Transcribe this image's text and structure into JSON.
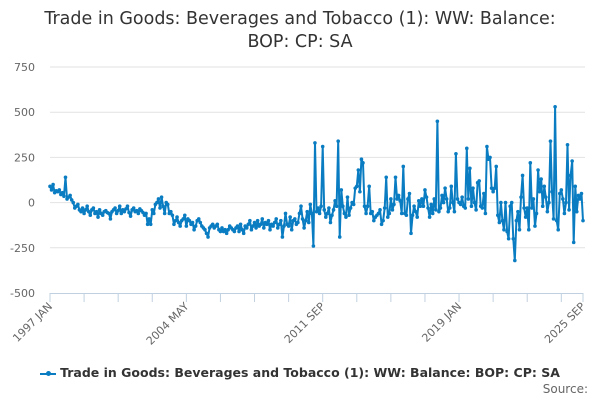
{
  "chart_data": {
    "type": "line",
    "title": "Trade in Goods: Beverages and Tobacco (1): WW: Balance: BOP: CP: SA",
    "title_lines": [
      "Trade in Goods: Beverages and Tobacco (1): WW: Balance:",
      "BOP: CP: SA"
    ],
    "xlabel": "",
    "ylabel": "",
    "ylim": [
      -500,
      750
    ],
    "yticks": [
      "750",
      "500",
      "250",
      "0",
      "-250",
      "-500"
    ],
    "ytick_values": [
      750,
      500,
      250,
      0,
      -250,
      -500
    ],
    "x_start": "1997 JAN",
    "x_end": "2025 SEP",
    "frequency": "monthly",
    "xtick_labels": [
      {
        "index": 0,
        "label": "1997 JAN"
      },
      {
        "index": 88,
        "label": "2004 MAY"
      },
      {
        "index": 176,
        "label": "2011 SEP"
      },
      {
        "index": 264,
        "label": "2019 JAN"
      },
      {
        "index": 344,
        "label": "2025 SEP"
      }
    ],
    "grid": true,
    "legend_position": "bottom",
    "series": [
      {
        "name": "Trade in Goods: Beverages and Tobacco (1): WW: Balance: BOP: CP: SA",
        "color": "#0a7dc2",
        "values": [
          90,
          70,
          100,
          55,
          65,
          60,
          70,
          45,
          55,
          35,
          140,
          20,
          30,
          40,
          15,
          0,
          -30,
          -20,
          -10,
          -40,
          -50,
          -30,
          -60,
          -40,
          -20,
          -50,
          -70,
          -40,
          -30,
          -60,
          -50,
          -80,
          -40,
          -60,
          -70,
          -50,
          -45,
          -55,
          -60,
          -90,
          -50,
          -40,
          -30,
          -60,
          -45,
          -20,
          -60,
          -40,
          -50,
          -35,
          -20,
          -55,
          -75,
          -40,
          -30,
          -50,
          -45,
          -60,
          -35,
          -45,
          -55,
          -70,
          -60,
          -120,
          -90,
          -120,
          -40,
          -60,
          -10,
          0,
          20,
          -30,
          30,
          -20,
          -60,
          0,
          -10,
          -60,
          -50,
          -70,
          -120,
          -100,
          -80,
          -110,
          -130,
          -100,
          -90,
          -70,
          -130,
          -90,
          -100,
          -120,
          -110,
          -150,
          -130,
          -100,
          -90,
          -110,
          -130,
          -140,
          -150,
          -170,
          -190,
          -140,
          -130,
          -120,
          -140,
          -130,
          -120,
          -150,
          -160,
          -140,
          -160,
          -150,
          -170,
          -150,
          -130,
          -140,
          -150,
          -160,
          -140,
          -130,
          -160,
          -120,
          -150,
          -170,
          -130,
          -140,
          -120,
          -100,
          -150,
          -130,
          -110,
          -140,
          -100,
          -130,
          -120,
          -90,
          -140,
          -110,
          -120,
          -100,
          -150,
          -120,
          -130,
          -110,
          -90,
          -140,
          -120,
          -100,
          -190,
          -130,
          -60,
          -120,
          -130,
          -80,
          -150,
          -100,
          -90,
          -120,
          -110,
          -60,
          -20,
          -90,
          -140,
          -100,
          -50,
          -110,
          -10,
          -60,
          -240,
          330,
          -50,
          -30,
          -60,
          -20,
          310,
          -40,
          -80,
          -60,
          -30,
          -110,
          -70,
          -40,
          10,
          -20,
          340,
          -190,
          70,
          -20,
          -60,
          -80,
          30,
          -70,
          -30,
          0,
          -10,
          80,
          90,
          180,
          60,
          240,
          220,
          -20,
          -60,
          -20,
          90,
          -60,
          -50,
          -100,
          -80,
          -70,
          -60,
          -40,
          -120,
          -100,
          -30,
          140,
          -80,
          -60,
          20,
          -40,
          -10,
          140,
          20,
          40,
          10,
          -60,
          200,
          -60,
          -70,
          20,
          50,
          -170,
          -70,
          -20,
          -50,
          -80,
          10,
          -20,
          20,
          -20,
          70,
          30,
          -30,
          -80,
          -10,
          -60,
          20,
          -40,
          450,
          -50,
          -30,
          40,
          0,
          80,
          20,
          -50,
          -30,
          90,
          0,
          -50,
          270,
          20,
          0,
          -10,
          30,
          -20,
          -30,
          300,
          20,
          190,
          -20,
          80,
          0,
          -40,
          110,
          120,
          -20,
          -30,
          50,
          -60,
          310,
          240,
          250,
          80,
          60,
          80,
          200,
          -70,
          -110,
          0,
          -100,
          -150,
          0,
          -160,
          -200,
          -20,
          0,
          -200,
          -320,
          -100,
          -50,
          -150,
          30,
          150,
          -30,
          -80,
          -30,
          -150,
          220,
          -30,
          20,
          -130,
          -60,
          180,
          60,
          130,
          -20,
          90,
          30,
          -50,
          0,
          340,
          60,
          -90,
          530,
          -100,
          -150,
          50,
          70,
          20,
          -60,
          0,
          320,
          -40,
          150,
          230,
          -220,
          90,
          -50,
          40,
          20,
          50,
          -100
        ]
      }
    ],
    "legend_label": "Trade in Goods: Beverages and Tobacco (1): WW: Balance: BOP: CP: SA",
    "source_label": "Source:"
  }
}
